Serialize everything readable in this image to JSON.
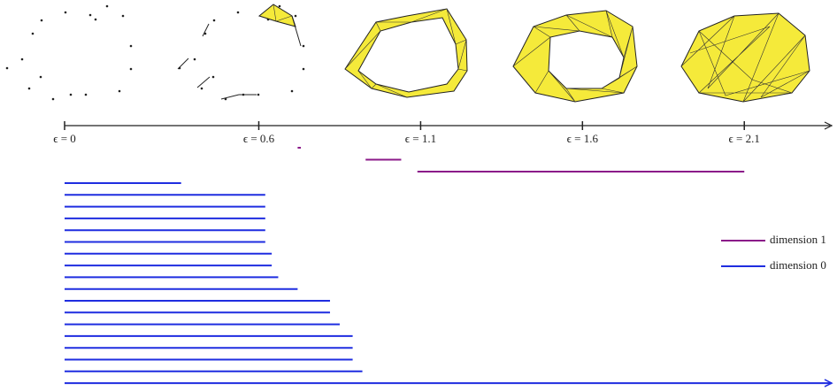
{
  "chart_data": {
    "type": "barcode",
    "xlim": [
      0,
      2.37
    ],
    "xticks": [
      {
        "value": 0,
        "label": "ϵ = 0"
      },
      {
        "value": 0.6,
        "label": "ϵ = 0.6"
      },
      {
        "value": 1.1,
        "label": "ϵ = 1.1"
      },
      {
        "value": 1.6,
        "label": "ϵ = 1.6"
      },
      {
        "value": 2.1,
        "label": "ϵ = 2.1"
      }
    ],
    "series": [
      {
        "name": "dimension 1",
        "color": "#8b1a89",
        "starts": [
          0.72,
          0.93,
          1.09
        ],
        "ends": [
          0.73,
          1.04,
          2.1
        ]
      },
      {
        "name": "dimension 0",
        "color": "#1f2de0",
        "starts": [
          0,
          0,
          0,
          0,
          0,
          0,
          0,
          0,
          0,
          0,
          0,
          0,
          0,
          0,
          0,
          0,
          0,
          0
        ],
        "ends": [
          0.36,
          0.62,
          0.62,
          0.62,
          0.62,
          0.62,
          0.64,
          0.64,
          0.66,
          0.72,
          0.82,
          0.82,
          0.85,
          0.89,
          0.89,
          0.89,
          0.92,
          2.37
        ]
      }
    ]
  }
}
